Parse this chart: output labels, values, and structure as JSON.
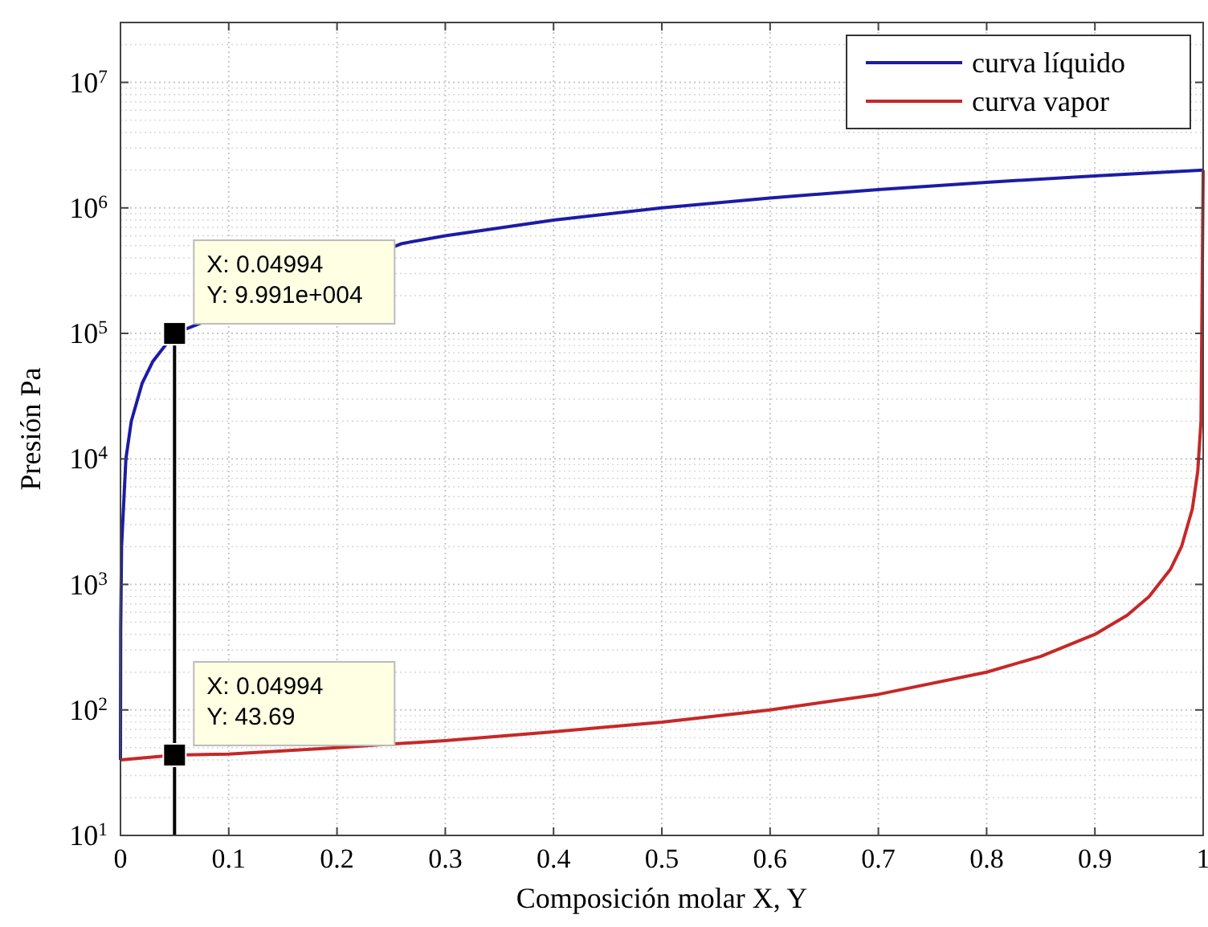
{
  "chart_data": {
    "type": "line",
    "xlabel": "Composición molar X, Y",
    "ylabel": "Presión Pa",
    "xlim": [
      0,
      1
    ],
    "xticks": [
      0,
      0.1,
      0.2,
      0.3,
      0.4,
      0.5,
      0.6,
      0.7,
      0.8,
      0.9,
      1
    ],
    "ylim": [
      10,
      30000000
    ],
    "yticks": [
      {
        "value": 10,
        "label": "10$^{1}$"
      },
      {
        "value": 100,
        "label": "10$^{2}$"
      },
      {
        "value": 1000,
        "label": "10$^{3}$"
      },
      {
        "value": 10000,
        "label": "10$^{4}$"
      },
      {
        "value": 100000,
        "label": "10$^{5}$"
      },
      {
        "value": 1000000,
        "label": "10$^{6}$"
      },
      {
        "value": 10000000,
        "label": "10$^{7}$"
      }
    ],
    "log": "y",
    "grid": true,
    "legend": "top right",
    "series": [
      {
        "name": "curva líquido",
        "color": "#1c1ca6",
        "x": [
          0,
          0.0002,
          0.001,
          0.005,
          0.01,
          0.02,
          0.03,
          0.04994,
          0.26,
          0.3,
          0.4,
          0.5,
          0.6,
          0.7,
          0.8,
          0.9,
          1
        ],
        "values": [
          40,
          440,
          2000,
          10000,
          20000,
          40000,
          60000,
          99910,
          520000,
          600000,
          800000,
          1000000,
          1200000,
          1400000,
          1600000,
          1800000,
          2000000
        ]
      },
      {
        "name": "curva vapor",
        "color": "#c62828",
        "x": [
          0,
          0.04994,
          0.1,
          0.2,
          0.3,
          0.4,
          0.5,
          0.6,
          0.7,
          0.8,
          0.85,
          0.9,
          0.93,
          0.95,
          0.97,
          0.98,
          0.99,
          0.995,
          0.998,
          1
        ],
        "values": [
          40,
          43.69,
          44.4,
          50,
          57,
          67,
          80,
          100,
          133,
          200,
          267,
          400,
          570,
          800,
          1330,
          2000,
          4000,
          8000,
          20000,
          2000000
        ]
      }
    ],
    "ref_lines": [
      {
        "axis": "x",
        "value": 0.04994,
        "color": "#000000"
      }
    ],
    "annotations": [
      {
        "text": "X: 0.04994\nY: 9.991e+004",
        "x": 0.04994,
        "y": 99910
      },
      {
        "text": "X: 0.04994\nY: 43.69",
        "x": 0.04994,
        "y": 43.69
      }
    ]
  }
}
